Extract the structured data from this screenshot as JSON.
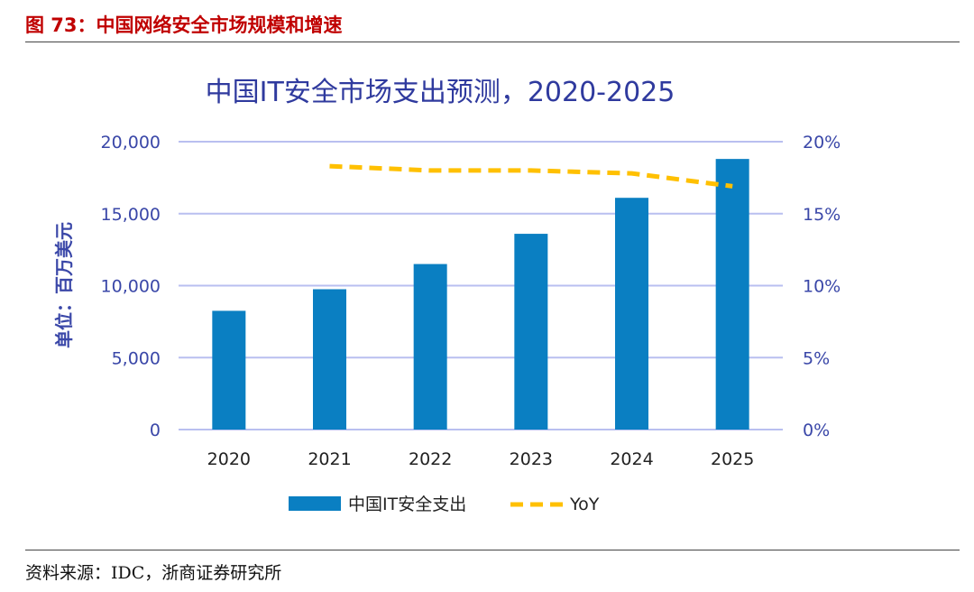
{
  "figure": {
    "title": "图 73：中国网络安全市场规模和增速",
    "source": "资料来源：IDC，浙商证券研究所"
  },
  "colors": {
    "bar": "#0a7fc2",
    "line": "#ffc000",
    "grid": "#b9bff0",
    "title": "#2f3a9e",
    "axis_text": "#3a47a8",
    "header": "#c00000"
  },
  "chart_data": {
    "type": "bar",
    "title": "中国IT安全市场支出预测，2020-2025",
    "ylabel": "单位：百万美元",
    "xlabel": "",
    "categories": [
      "2020",
      "2021",
      "2022",
      "2023",
      "2024",
      "2025"
    ],
    "ylim": [
      0,
      20000
    ],
    "yticks": [
      "0",
      "5,000",
      "10,000",
      "15,000",
      "20,000"
    ],
    "y2lim": [
      0,
      20
    ],
    "y2ticks": [
      "0%",
      "5%",
      "10%",
      "15%",
      "20%"
    ],
    "grid": true,
    "series": [
      {
        "name": "中国IT安全支出",
        "type": "bar",
        "axis": "left",
        "values": [
          8250,
          9750,
          11500,
          13600,
          16100,
          18800
        ]
      },
      {
        "name": "YoY",
        "type": "line",
        "style": "dashed",
        "axis": "right",
        "values": [
          null,
          18.3,
          18.0,
          18.0,
          17.8,
          16.9
        ]
      }
    ],
    "legend": "bottom"
  }
}
